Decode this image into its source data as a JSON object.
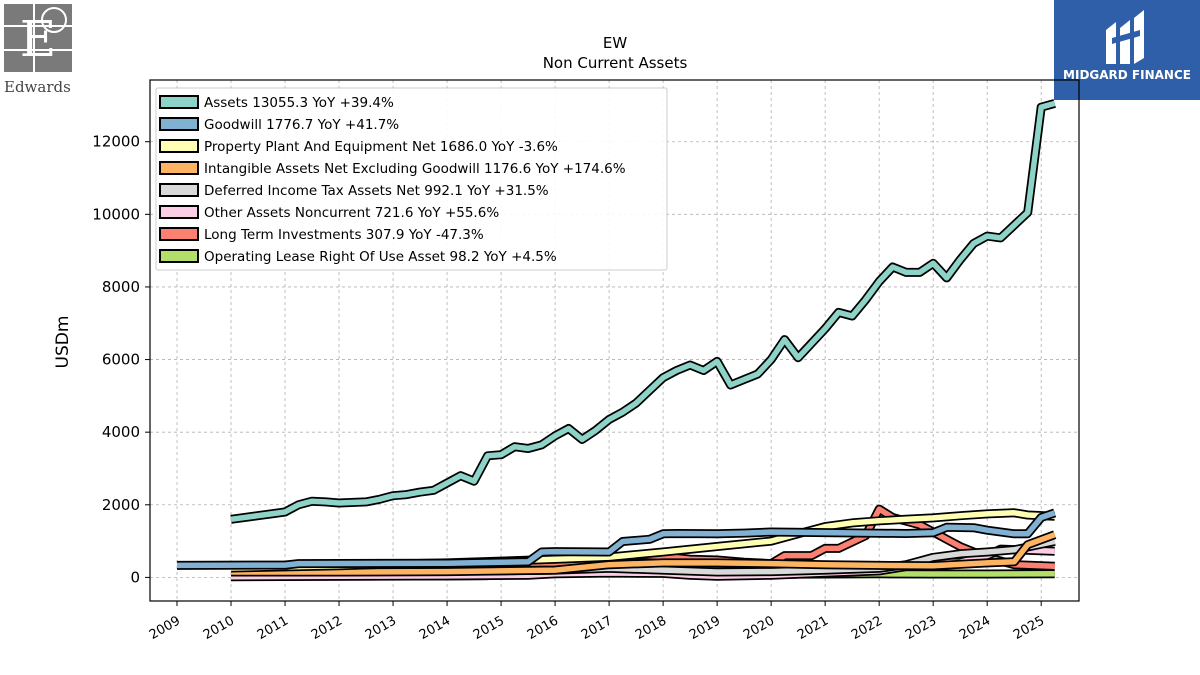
{
  "brand": {
    "left_logo_text": "Edwards",
    "right_logo_text": "MIDGARD FINANCE"
  },
  "chart_data": {
    "type": "line",
    "title": "EW",
    "subtitle": "Non Current  Assets",
    "ylabel": "USDm",
    "xlabel": "",
    "xlim": [
      2008.5,
      2025.7
    ],
    "ylim": [
      -650,
      13700
    ],
    "x_ticks": [
      "2009",
      "2010",
      "2011",
      "2012",
      "2013",
      "2014",
      "2015",
      "2016",
      "2017",
      "2018",
      "2019",
      "2020",
      "2021",
      "2022",
      "2023",
      "2024",
      "2025"
    ],
    "y_ticks": [
      0,
      2000,
      4000,
      6000,
      8000,
      10000,
      12000
    ],
    "y_tick_labels": [
      "0",
      "2000",
      "4000",
      "6000",
      "8000",
      "10000",
      "12000"
    ],
    "grid": true,
    "legend_position": "top-left",
    "series": [
      {
        "name": "Assets  13055.3 YoY +39.4%",
        "color": "#8dd3c7",
        "points": [
          [
            2010.0,
            1600
          ],
          [
            2011.0,
            1800
          ],
          [
            2011.25,
            2000
          ],
          [
            2011.5,
            2100
          ],
          [
            2011.75,
            2080
          ],
          [
            2012.0,
            2050
          ],
          [
            2012.5,
            2080
          ],
          [
            2012.75,
            2150
          ],
          [
            2013.0,
            2250
          ],
          [
            2013.25,
            2280
          ],
          [
            2013.5,
            2350
          ],
          [
            2013.75,
            2400
          ],
          [
            2014.0,
            2600
          ],
          [
            2014.25,
            2800
          ],
          [
            2014.5,
            2650
          ],
          [
            2014.75,
            3350
          ],
          [
            2015.0,
            3380
          ],
          [
            2015.25,
            3600
          ],
          [
            2015.5,
            3550
          ],
          [
            2015.75,
            3650
          ],
          [
            2016.0,
            3900
          ],
          [
            2016.25,
            4100
          ],
          [
            2016.5,
            3800
          ],
          [
            2016.75,
            4050
          ],
          [
            2017.0,
            4350
          ],
          [
            2017.25,
            4550
          ],
          [
            2017.5,
            4800
          ],
          [
            2017.75,
            5150
          ],
          [
            2018.0,
            5500
          ],
          [
            2018.25,
            5700
          ],
          [
            2018.5,
            5850
          ],
          [
            2018.75,
            5700
          ],
          [
            2019.0,
            5950
          ],
          [
            2019.25,
            5300
          ],
          [
            2019.5,
            5450
          ],
          [
            2019.75,
            5600
          ],
          [
            2020.0,
            6000
          ],
          [
            2020.25,
            6550
          ],
          [
            2020.5,
            6050
          ],
          [
            2020.75,
            6450
          ],
          [
            2021.0,
            6850
          ],
          [
            2021.25,
            7300
          ],
          [
            2021.5,
            7200
          ],
          [
            2021.75,
            7650
          ],
          [
            2022.0,
            8150
          ],
          [
            2022.25,
            8550
          ],
          [
            2022.5,
            8400
          ],
          [
            2022.75,
            8400
          ],
          [
            2023.0,
            8650
          ],
          [
            2023.25,
            8250
          ],
          [
            2023.5,
            8750
          ],
          [
            2023.75,
            9200
          ],
          [
            2024.0,
            9400
          ],
          [
            2024.25,
            9350
          ],
          [
            2024.75,
            10050
          ],
          [
            2025.0,
            12950
          ],
          [
            2025.25,
            13055
          ]
        ]
      },
      {
        "name": "Goodwill  1776.7 YoY +41.7%",
        "color": "#80b1d3",
        "points": [
          [
            2009.0,
            330
          ],
          [
            2011.0,
            340
          ],
          [
            2011.25,
            380
          ],
          [
            2014.0,
            390
          ],
          [
            2015.0,
            420
          ],
          [
            2015.5,
            430
          ],
          [
            2015.75,
            700
          ],
          [
            2016.0,
            710
          ],
          [
            2017.0,
            700
          ],
          [
            2017.25,
            990
          ],
          [
            2017.75,
            1050
          ],
          [
            2018.0,
            1200
          ],
          [
            2018.25,
            1210
          ],
          [
            2019.0,
            1200
          ],
          [
            2019.5,
            1220
          ],
          [
            2020.0,
            1250
          ],
          [
            2022.5,
            1210
          ],
          [
            2023.0,
            1230
          ],
          [
            2023.25,
            1380
          ],
          [
            2023.75,
            1370
          ],
          [
            2024.0,
            1300
          ],
          [
            2024.5,
            1200
          ],
          [
            2024.75,
            1200
          ],
          [
            2025.0,
            1650
          ],
          [
            2025.25,
            1776
          ]
        ]
      },
      {
        "name": "Property Plant And Equipment Net  1686.0 YoY -3.6%",
        "color": "#ffffb3",
        "points": [
          [
            2010.0,
            260
          ],
          [
            2011.0,
            290
          ],
          [
            2012.0,
            320
          ],
          [
            2013.0,
            370
          ],
          [
            2014.0,
            400
          ],
          [
            2015.0,
            450
          ],
          [
            2016.0,
            500
          ],
          [
            2017.0,
            560
          ],
          [
            2018.0,
            700
          ],
          [
            2019.0,
            850
          ],
          [
            2020.0,
            1000
          ],
          [
            2020.5,
            1200
          ],
          [
            2021.0,
            1400
          ],
          [
            2021.5,
            1500
          ],
          [
            2022.0,
            1560
          ],
          [
            2022.5,
            1600
          ],
          [
            2023.0,
            1640
          ],
          [
            2023.5,
            1700
          ],
          [
            2024.0,
            1750
          ],
          [
            2024.5,
            1780
          ],
          [
            2024.75,
            1720
          ],
          [
            2025.25,
            1686
          ]
        ]
      },
      {
        "name": "Intangible Assets Net Excluding Goodwill  1176.6 YoY +174.6%",
        "color": "#fdb462",
        "points": [
          [
            2010.0,
            150
          ],
          [
            2012.0,
            150
          ],
          [
            2014.0,
            160
          ],
          [
            2016.0,
            200
          ],
          [
            2017.0,
            350
          ],
          [
            2018.0,
            400
          ],
          [
            2019.0,
            400
          ],
          [
            2020.0,
            380
          ],
          [
            2021.0,
            350
          ],
          [
            2022.0,
            330
          ],
          [
            2023.0,
            320
          ],
          [
            2024.0,
            400
          ],
          [
            2024.5,
            430
          ],
          [
            2024.75,
            900
          ],
          [
            2025.25,
            1176
          ]
        ]
      },
      {
        "name": "Deferred Income Tax Assets Net  992.1 YoY +31.5%",
        "color": "#d9d9d9",
        "points": [
          [
            2010.0,
            150
          ],
          [
            2012.0,
            160
          ],
          [
            2014.0,
            170
          ],
          [
            2016.0,
            200
          ],
          [
            2017.0,
            250
          ],
          [
            2018.0,
            200
          ],
          [
            2019.0,
            150
          ],
          [
            2020.0,
            160
          ],
          [
            2021.0,
            200
          ],
          [
            2022.0,
            250
          ],
          [
            2022.5,
            350
          ],
          [
            2023.0,
            550
          ],
          [
            2023.5,
            650
          ],
          [
            2024.0,
            700
          ],
          [
            2024.5,
            760
          ],
          [
            2025.25,
            992
          ]
        ]
      },
      {
        "name": "Other Assets Noncurrent  721.6 YoY +55.6%",
        "color": "#fccde5",
        "points": [
          [
            2010.0,
            20
          ],
          [
            2012.0,
            30
          ],
          [
            2014.0,
            40
          ],
          [
            2015.5,
            60
          ],
          [
            2016.0,
            100
          ],
          [
            2017.0,
            120
          ],
          [
            2018.0,
            110
          ],
          [
            2018.5,
            60
          ],
          [
            2019.0,
            30
          ],
          [
            2020.0,
            60
          ],
          [
            2021.0,
            120
          ],
          [
            2022.0,
            180
          ],
          [
            2022.5,
            300
          ],
          [
            2023.0,
            400
          ],
          [
            2023.5,
            420
          ],
          [
            2024.0,
            600
          ],
          [
            2024.25,
            780
          ],
          [
            2024.75,
            750
          ],
          [
            2025.25,
            721
          ]
        ]
      },
      {
        "name": "Long Term Investments  307.9 YoY -47.3%",
        "color": "#fb8072",
        "points": [
          [
            2010.0,
            30
          ],
          [
            2014.0,
            40
          ],
          [
            2014.75,
            50
          ],
          [
            2015.0,
            250
          ],
          [
            2015.5,
            300
          ],
          [
            2016.0,
            380
          ],
          [
            2016.5,
            420
          ],
          [
            2017.0,
            550
          ],
          [
            2017.5,
            620
          ],
          [
            2018.0,
            580
          ],
          [
            2018.5,
            500
          ],
          [
            2019.0,
            480
          ],
          [
            2019.5,
            420
          ],
          [
            2020.0,
            380
          ],
          [
            2020.25,
            600
          ],
          [
            2020.75,
            600
          ],
          [
            2021.0,
            800
          ],
          [
            2021.25,
            800
          ],
          [
            2021.75,
            1150
          ],
          [
            2022.0,
            1880
          ],
          [
            2022.25,
            1650
          ],
          [
            2022.75,
            1450
          ],
          [
            2023.0,
            1250
          ],
          [
            2023.25,
            1050
          ],
          [
            2023.5,
            850
          ],
          [
            2024.0,
            550
          ],
          [
            2024.5,
            350
          ],
          [
            2025.25,
            308
          ]
        ]
      },
      {
        "name": "Operating Lease Right Of Use Asset  98.2 YoY +4.5%",
        "color": "#b3de69",
        "points": [
          [
            2019.25,
            80
          ],
          [
            2020.0,
            85
          ],
          [
            2021.0,
            95
          ],
          [
            2022.0,
            100
          ],
          [
            2023.0,
            95
          ],
          [
            2024.0,
            94
          ],
          [
            2025.25,
            98
          ]
        ]
      }
    ]
  }
}
